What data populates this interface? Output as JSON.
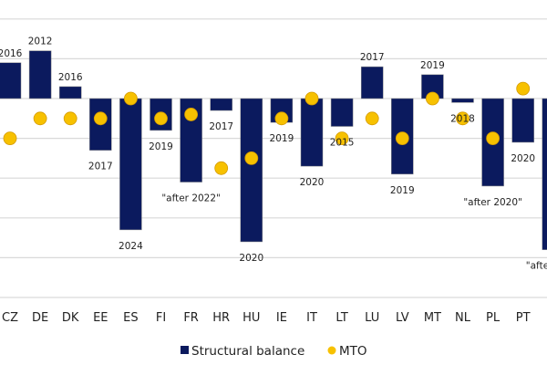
{
  "chart_data": {
    "type": "bar",
    "categories": [
      "CZ",
      "DE",
      "DK",
      "EE",
      "ES",
      "FI",
      "FR",
      "HR",
      "HU",
      "IE",
      "IT",
      "LT",
      "LU",
      "LV",
      "MT",
      "NL",
      "PL",
      "PT",
      ""
    ],
    "series": [
      {
        "name": "Structural balance",
        "kind": "bar",
        "color": "#0b1a5e",
        "values": [
          0.9,
          1.2,
          0.3,
          -1.3,
          -3.3,
          -0.8,
          -2.1,
          -0.3,
          -3.6,
          -0.6,
          -1.7,
          -0.7,
          0.8,
          -1.9,
          0.6,
          -0.1,
          -2.2,
          -1.1,
          -3.8
        ]
      },
      {
        "name": "MTO",
        "kind": "marker",
        "color": "#f7c100",
        "values": [
          -1,
          -0.5,
          -0.5,
          -0.5,
          0,
          -0.5,
          -0.4,
          -1.75,
          -1.5,
          -0.5,
          0,
          -1,
          -0.5,
          -1,
          0,
          -0.5,
          -1,
          0.25,
          null
        ]
      }
    ],
    "annotations": [
      "2016",
      "2012",
      "2016",
      "2017",
      "2024",
      "2019",
      "\"after 2022\"",
      "2017",
      "2020",
      "2019",
      "2020",
      "2015",
      "2017",
      "2019",
      "2019",
      "2018",
      "\"after 2020\"",
      "2020",
      "\"afte"
    ],
    "ylim": [
      -5,
      2
    ],
    "grid": true,
    "legend_position": "bottom",
    "title": "",
    "xlabel": "",
    "ylabel": ""
  }
}
